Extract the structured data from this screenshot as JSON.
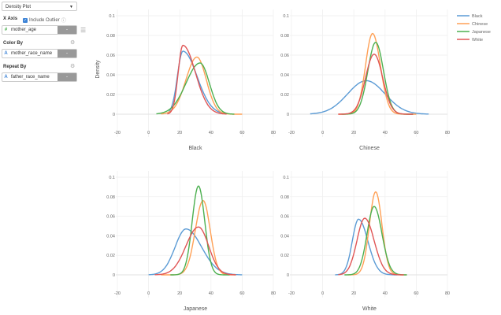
{
  "sidebar": {
    "chart_type": "Density Plot",
    "x_axis_label": "X Axis",
    "include_outlier_label": "Include Outlier",
    "x_field": "mother_age",
    "color_by_label": "Color By",
    "color_field": "mother_race_name",
    "repeat_by_label": "Repeat By",
    "repeat_field": "father_race_name",
    "button_label": "-"
  },
  "chart_data": {
    "type": "line",
    "ylabel": "Density",
    "xlim": [
      -20,
      80
    ],
    "ylim": [
      -0.02,
      0.1
    ],
    "xticks": [
      -20,
      0,
      20,
      40,
      60,
      80
    ],
    "yticks": [
      0,
      0.02,
      0.04,
      0.06,
      0.08,
      0.1
    ],
    "ytick_labels": [
      "0",
      "0.02",
      "0.04",
      "0.06",
      "0.08",
      "0.1"
    ],
    "grid": true,
    "legend_position": "top-right",
    "legend": [
      "Black",
      "Chinese",
      "Japanese",
      "White"
    ],
    "colors": {
      "Black": "#5b9bd5",
      "Chinese": "#ffa055",
      "Japanese": "#4cb050",
      "White": "#e05555"
    },
    "curve_model": "split-normal (peak_x, peak_y, left_sd, right_sd, support range)",
    "panels": [
      {
        "title": "Black",
        "series": [
          {
            "name": "Black",
            "peak_x": 22,
            "peak_y": 0.064,
            "left_sd": 3.5,
            "right_sd": 9,
            "range": [
              12,
              50
            ]
          },
          {
            "name": "Chinese",
            "peak_x": 31,
            "peak_y": 0.058,
            "left_sd": 7,
            "right_sd": 6,
            "range": [
              8,
              60
            ]
          },
          {
            "name": "Japanese",
            "peak_x": 33,
            "peak_y": 0.052,
            "left_sd": 9,
            "right_sd": 6,
            "range": [
              5,
              55
            ]
          },
          {
            "name": "White",
            "peak_x": 22,
            "peak_y": 0.07,
            "left_sd": 3,
            "right_sd": 8,
            "range": [
              12,
              50
            ]
          }
        ]
      },
      {
        "title": "Chinese",
        "series": [
          {
            "name": "Black",
            "peak_x": 28,
            "peak_y": 0.034,
            "left_sd": 12,
            "right_sd": 12,
            "range": [
              -8,
              68
            ]
          },
          {
            "name": "Chinese",
            "peak_x": 32,
            "peak_y": 0.082,
            "left_sd": 4.5,
            "right_sd": 5,
            "range": [
              10,
              60
            ]
          },
          {
            "name": "Japanese",
            "peak_x": 34,
            "peak_y": 0.073,
            "left_sd": 5,
            "right_sd": 5,
            "range": [
              12,
              58
            ]
          },
          {
            "name": "White",
            "peak_x": 33,
            "peak_y": 0.061,
            "left_sd": 5.5,
            "right_sd": 5.5,
            "range": [
              10,
              58
            ]
          }
        ]
      },
      {
        "title": "Japanese",
        "series": [
          {
            "name": "Black",
            "peak_x": 24,
            "peak_y": 0.047,
            "left_sd": 7,
            "right_sd": 10,
            "range": [
              0,
              60
            ]
          },
          {
            "name": "Chinese",
            "peak_x": 35,
            "peak_y": 0.076,
            "left_sd": 5,
            "right_sd": 4.5,
            "range": [
              8,
              56
            ]
          },
          {
            "name": "Japanese",
            "peak_x": 32,
            "peak_y": 0.091,
            "left_sd": 4,
            "right_sd": 4,
            "range": [
              14,
              52
            ]
          },
          {
            "name": "White",
            "peak_x": 32,
            "peak_y": 0.049,
            "left_sd": 8,
            "right_sd": 6.5,
            "range": [
              4,
              56
            ]
          }
        ]
      },
      {
        "title": "White",
        "series": [
          {
            "name": "Black",
            "peak_x": 23,
            "peak_y": 0.057,
            "left_sd": 4,
            "right_sd": 6,
            "range": [
              8,
              48
            ]
          },
          {
            "name": "Chinese",
            "peak_x": 34,
            "peak_y": 0.085,
            "left_sd": 4,
            "right_sd": 4,
            "range": [
              16,
              54
            ]
          },
          {
            "name": "Japanese",
            "peak_x": 33,
            "peak_y": 0.07,
            "left_sd": 4.5,
            "right_sd": 5,
            "range": [
              14,
              54
            ]
          },
          {
            "name": "White",
            "peak_x": 27,
            "peak_y": 0.058,
            "left_sd": 5,
            "right_sd": 6,
            "range": [
              10,
              52
            ]
          }
        ]
      }
    ]
  }
}
